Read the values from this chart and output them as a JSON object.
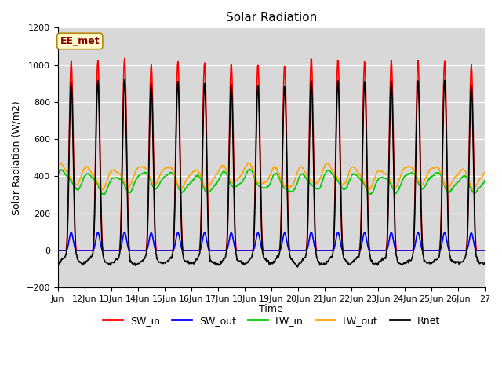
{
  "title": "Solar Radiation",
  "xlabel": "Time",
  "ylabel": "Solar Radiation (W/m2)",
  "ylim": [
    -200,
    1200
  ],
  "yticks": [
    -200,
    0,
    200,
    400,
    600,
    800,
    1000,
    1200
  ],
  "x_start_day": 11,
  "x_end_day": 27,
  "x_tick_days": [
    11,
    12,
    13,
    14,
    15,
    16,
    17,
    18,
    19,
    20,
    21,
    22,
    23,
    24,
    25,
    26,
    27
  ],
  "x_tick_labels": [
    "Jun",
    "12Jun",
    "13Jun",
    "14Jun",
    "15Jun",
    "16Jun",
    "17Jun",
    "18Jun",
    "19Jun",
    "20Jun",
    "21Jun",
    "22Jun",
    "23Jun",
    "24Jun",
    "25Jun",
    "26Jun",
    "27"
  ],
  "series_names": [
    "SW_in",
    "SW_out",
    "LW_in",
    "LW_out",
    "Rnet"
  ],
  "series_colors": [
    "#ff0000",
    "#0000ff",
    "#00cc00",
    "#ffa500",
    "#000000"
  ],
  "series_lw": [
    1.2,
    1.2,
    1.2,
    1.2,
    1.2
  ],
  "annotation_text": "EE_met",
  "annotation_text_color": "#8b0000",
  "annotation_bg": "#ffffcc",
  "annotation_edge": "#b8860b",
  "plot_bg": "#d8d8d8",
  "title_fontsize": 11,
  "axis_fontsize": 9,
  "tick_fontsize": 8,
  "legend_fontsize": 9,
  "sw_peaks": [
    1020,
    1025,
    1035,
    1005,
    1020,
    1015,
    1010,
    1005,
    1000,
    1040,
    1030,
    1020,
    1025,
    1025,
    1020,
    1000
  ],
  "sw_out_ratio": 0.095,
  "lw_in_base": 370,
  "lw_in_amp": 45,
  "lw_out_base": 400,
  "lw_out_amp": 50,
  "night_rnet": -75
}
